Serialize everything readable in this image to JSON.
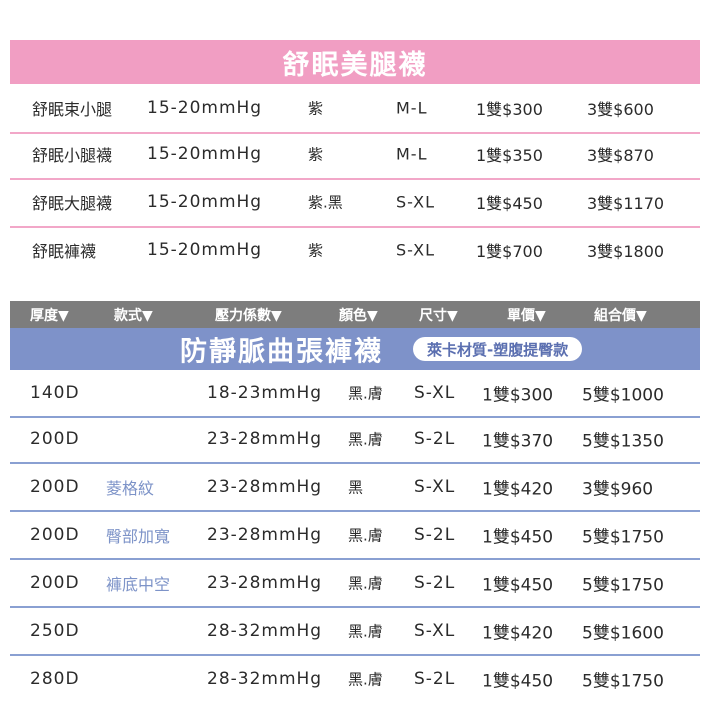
{
  "section1": {
    "title": "舒眠美腿襪",
    "rows": [
      {
        "name": "舒眠束小腿",
        "pressure": "15-20mmHg",
        "color": "紫",
        "size": "M-L",
        "price": "1雙$300",
        "combo": "3雙$600"
      },
      {
        "name": "舒眠小腿襪",
        "pressure": "15-20mmHg",
        "color": "紫",
        "size": "M-L",
        "price": "1雙$350",
        "combo": "3雙$870"
      },
      {
        "name": "舒眠大腿襪",
        "pressure": "15-20mmHg",
        "color": "紫.黑",
        "size": "S-XL",
        "price": "1雙$450",
        "combo": "3雙$1170"
      },
      {
        "name": "舒眠褲襪",
        "pressure": "15-20mmHg",
        "color": "紫",
        "size": "S-XL",
        "price": "1雙$700",
        "combo": "3雙$1800"
      }
    ]
  },
  "header": {
    "thickness": "厚度▼",
    "style": "款式▼",
    "pressure": "壓力係數▼",
    "color": "顏色▼",
    "size": "尺寸▼",
    "price": "單價▼",
    "combo": "組合價▼"
  },
  "section2": {
    "title": "防靜脈曲張褲襪",
    "tag": "萊卡材質-塑腹提臀款",
    "rows": [
      {
        "thickness": "140D",
        "style": "",
        "pressure": "18-23mmHg",
        "color": "黑.膚",
        "size": "S-XL",
        "price": "1雙$300",
        "combo": "5雙$1000"
      },
      {
        "thickness": "200D",
        "style": "",
        "pressure": "23-28mmHg",
        "color": "黑.膚",
        "size": "S-2L",
        "price": "1雙$370",
        "combo": "5雙$1350"
      },
      {
        "thickness": "200D",
        "style": "菱格紋",
        "pressure": "23-28mmHg",
        "color": "黑",
        "size": "S-XL",
        "price": "1雙$420",
        "combo": "3雙$960"
      },
      {
        "thickness": "200D",
        "style": "臀部加寬",
        "pressure": "23-28mmHg",
        "color": "黑.膚",
        "size": "S-2L",
        "price": "1雙$450",
        "combo": "5雙$1750"
      },
      {
        "thickness": "200D",
        "style": "褲底中空",
        "pressure": "23-28mmHg",
        "color": "黑.膚",
        "size": "S-2L",
        "price": "1雙$450",
        "combo": "5雙$1750"
      },
      {
        "thickness": "250D",
        "style": "",
        "pressure": "28-32mmHg",
        "color": "黑.膚",
        "size": "S-XL",
        "price": "1雙$420",
        "combo": "5雙$1600"
      },
      {
        "thickness": "280D",
        "style": "",
        "pressure": "28-32mmHg",
        "color": "黑.膚",
        "size": "S-2L",
        "price": "1雙$450",
        "combo": "5雙$1750"
      }
    ]
  },
  "colors": {
    "pink": "#f19ec3",
    "blue": "#7e92c9",
    "gray": "#7d7d7d"
  }
}
